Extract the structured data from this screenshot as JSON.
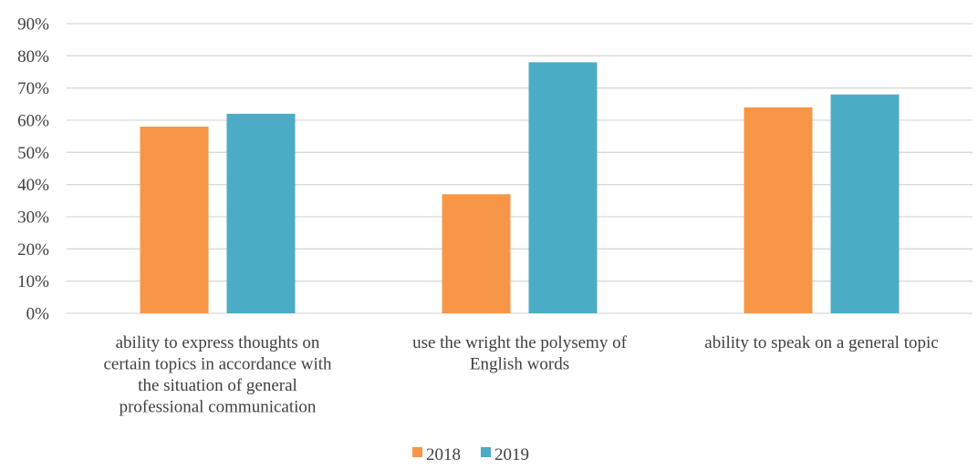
{
  "chart_data": {
    "type": "bar",
    "categories": [
      [
        "ability to express thoughts on",
        "certain topics in accordance with",
        "the situation of general",
        "professional communication"
      ],
      [
        "use the wright the polysemy of",
        "English words"
      ],
      [
        "ability to speak on a general topic"
      ]
    ],
    "series": [
      {
        "name": "2018",
        "values": [
          0.58,
          0.37,
          0.64
        ],
        "color": "#F79646"
      },
      {
        "name": "2019",
        "values": [
          0.62,
          0.78,
          0.68
        ],
        "color": "#4BACC6"
      }
    ],
    "ylim": [
      0,
      0.9
    ],
    "yticks": [
      "0%",
      "10%",
      "20%",
      "30%",
      "40%",
      "50%",
      "60%",
      "70%",
      "80%",
      "90%"
    ],
    "grid": true,
    "legend_position": "bottom"
  }
}
